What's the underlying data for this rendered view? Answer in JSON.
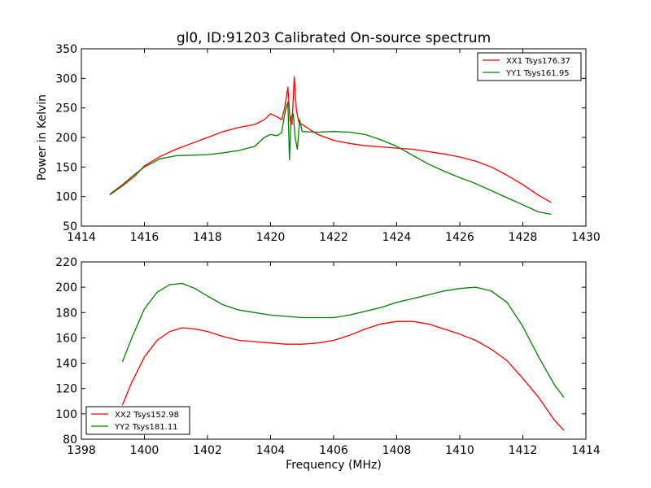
{
  "chart_data": [
    {
      "type": "line",
      "title": "gl0, ID:91203 Calibrated On-source spectrum",
      "xlabel": "",
      "ylabel": "Power in Kelvin",
      "xlim": [
        1414,
        1430
      ],
      "ylim": [
        50,
        350
      ],
      "xticks": [
        "1414",
        "1416",
        "1418",
        "1420",
        "1422",
        "1424",
        "1426",
        "1428",
        "1430"
      ],
      "yticks": [
        "50",
        "100",
        "150",
        "200",
        "250",
        "300",
        "350"
      ],
      "legend_position": "top-right",
      "series": [
        {
          "name": "XX1 Tsys176.37",
          "color": "#ff0000",
          "x": [
            1414.9,
            1415.3,
            1415.7,
            1416.0,
            1416.5,
            1417.0,
            1417.5,
            1418.0,
            1418.5,
            1419.0,
            1419.5,
            1419.8,
            1420.0,
            1420.2,
            1420.35,
            1420.45,
            1420.55,
            1420.62,
            1420.68,
            1420.75,
            1420.82,
            1420.9,
            1421.0,
            1421.2,
            1421.5,
            1422.0,
            1422.5,
            1423.0,
            1423.5,
            1424.0,
            1424.5,
            1425.0,
            1425.5,
            1426.0,
            1426.5,
            1427.0,
            1427.5,
            1428.0,
            1428.5,
            1428.9
          ],
          "y": [
            103,
            118,
            135,
            152,
            168,
            180,
            190,
            200,
            210,
            217,
            222,
            230,
            240,
            235,
            230,
            250,
            285,
            228,
            222,
            303,
            245,
            225,
            222,
            215,
            205,
            195,
            190,
            186,
            184,
            182,
            180,
            176,
            172,
            167,
            160,
            150,
            136,
            120,
            102,
            90
          ]
        },
        {
          "name": "YY1 Tsys161.95",
          "color": "#008000",
          "x": [
            1414.9,
            1415.3,
            1415.7,
            1416.0,
            1416.5,
            1417.0,
            1417.5,
            1418.0,
            1418.5,
            1419.0,
            1419.5,
            1419.8,
            1420.0,
            1420.2,
            1420.35,
            1420.45,
            1420.55,
            1420.6,
            1420.65,
            1420.72,
            1420.78,
            1420.85,
            1420.92,
            1421.0,
            1421.5,
            1422.0,
            1422.5,
            1423.0,
            1423.5,
            1424.0,
            1424.5,
            1425.0,
            1425.5,
            1426.0,
            1426.5,
            1427.0,
            1427.5,
            1428.0,
            1428.5,
            1428.9
          ],
          "y": [
            104,
            120,
            138,
            150,
            164,
            169,
            170,
            171,
            174,
            178,
            185,
            200,
            205,
            203,
            208,
            240,
            260,
            162,
            235,
            240,
            200,
            180,
            230,
            210,
            209,
            210,
            209,
            205,
            196,
            185,
            170,
            155,
            143,
            132,
            122,
            110,
            98,
            86,
            74,
            70
          ]
        }
      ]
    },
    {
      "type": "line",
      "title": "",
      "xlabel": "Frequency (MHz)",
      "ylabel": "",
      "xlim": [
        1398,
        1414
      ],
      "ylim": [
        80,
        220
      ],
      "xticks": [
        "1398",
        "1400",
        "1402",
        "1404",
        "1406",
        "1408",
        "1410",
        "1412",
        "1414"
      ],
      "yticks": [
        "80",
        "100",
        "120",
        "140",
        "160",
        "180",
        "200",
        "220"
      ],
      "legend_position": "bottom-left",
      "series": [
        {
          "name": "XX2 Tsys152.98",
          "color": "#ff0000",
          "x": [
            1399.3,
            1399.6,
            1400.0,
            1400.4,
            1400.8,
            1401.2,
            1401.6,
            1402.0,
            1402.5,
            1403.0,
            1403.5,
            1404.0,
            1404.5,
            1405.0,
            1405.5,
            1406.0,
            1406.5,
            1407.0,
            1407.5,
            1408.0,
            1408.5,
            1409.0,
            1409.5,
            1410.0,
            1410.5,
            1411.0,
            1411.5,
            1412.0,
            1412.5,
            1413.0,
            1413.3
          ],
          "y": [
            107,
            125,
            145,
            158,
            165,
            168,
            167,
            165,
            161,
            158,
            157,
            156,
            155,
            155,
            156,
            158,
            162,
            167,
            171,
            173,
            173,
            171,
            167,
            163,
            158,
            151,
            142,
            128,
            113,
            95,
            87
          ]
        },
        {
          "name": "YY2 Tsys181.11",
          "color": "#008000",
          "x": [
            1399.3,
            1399.6,
            1400.0,
            1400.4,
            1400.8,
            1401.2,
            1401.6,
            1402.0,
            1402.5,
            1403.0,
            1403.5,
            1404.0,
            1404.5,
            1405.0,
            1405.5,
            1406.0,
            1406.5,
            1407.0,
            1407.5,
            1408.0,
            1408.5,
            1409.0,
            1409.5,
            1410.0,
            1410.5,
            1411.0,
            1411.5,
            1412.0,
            1412.5,
            1413.0,
            1413.3
          ],
          "y": [
            141,
            160,
            183,
            196,
            202,
            203,
            199,
            193,
            186,
            182,
            180,
            178,
            177,
            176,
            176,
            176,
            178,
            181,
            184,
            188,
            191,
            194,
            197,
            199,
            200,
            197,
            188,
            169,
            145,
            123,
            113
          ]
        }
      ]
    }
  ]
}
